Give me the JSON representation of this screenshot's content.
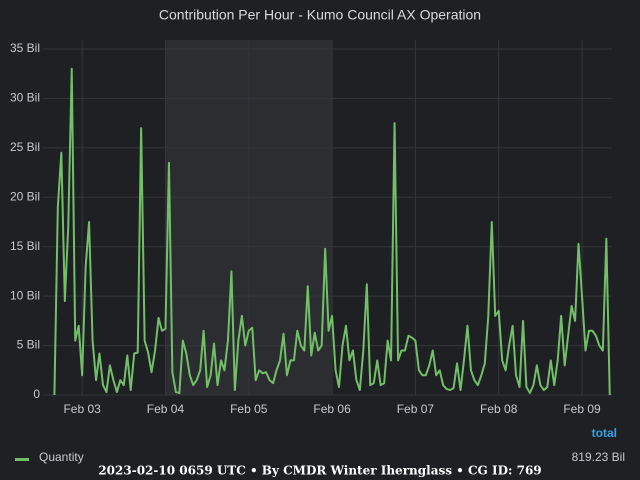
{
  "chart_data": {
    "type": "line",
    "title": "Contribution Per Hour - Kumo Council AX Operation",
    "x": [
      2.667,
      2.708,
      2.75,
      2.792,
      2.833,
      2.875,
      2.917,
      2.958,
      3,
      3.042,
      3.083,
      3.125,
      3.167,
      3.208,
      3.25,
      3.292,
      3.333,
      3.375,
      3.417,
      3.458,
      3.5,
      3.542,
      3.583,
      3.625,
      3.667,
      3.708,
      3.75,
      3.792,
      3.833,
      3.875,
      3.917,
      3.958,
      4,
      4.042,
      4.083,
      4.125,
      4.167,
      4.208,
      4.25,
      4.292,
      4.333,
      4.375,
      4.417,
      4.458,
      4.5,
      4.542,
      4.583,
      4.625,
      4.667,
      4.708,
      4.75,
      4.792,
      4.833,
      4.875,
      4.917,
      4.958,
      5,
      5.042,
      5.083,
      5.125,
      5.167,
      5.208,
      5.25,
      5.292,
      5.333,
      5.375,
      5.417,
      5.458,
      5.5,
      5.542,
      5.583,
      5.625,
      5.667,
      5.708,
      5.75,
      5.792,
      5.833,
      5.875,
      5.917,
      5.958,
      6,
      6.042,
      6.083,
      6.125,
      6.167,
      6.208,
      6.25,
      6.292,
      6.333,
      6.375,
      6.417,
      6.458,
      6.5,
      6.542,
      6.583,
      6.625,
      6.667,
      6.708,
      6.75,
      6.792,
      6.833,
      6.875,
      6.917,
      6.958,
      7,
      7.042,
      7.083,
      7.125,
      7.167,
      7.208,
      7.25,
      7.292,
      7.333,
      7.375,
      7.417,
      7.458,
      7.5,
      7.542,
      7.583,
      7.625,
      7.667,
      7.708,
      7.75,
      7.792,
      7.833,
      7.875,
      7.917,
      7.958,
      8,
      8.042,
      8.083,
      8.125,
      8.167,
      8.208,
      8.25,
      8.292,
      8.333,
      8.375,
      8.417,
      8.458,
      8.5,
      8.542,
      8.583,
      8.625,
      8.667,
      8.708,
      8.75,
      8.792,
      8.833,
      8.875,
      8.917,
      8.958,
      9,
      9.042,
      9.083,
      9.125,
      9.167,
      9.208,
      9.25,
      9.292,
      9.333
    ],
    "series": [
      {
        "name": "Quantity",
        "color": "#73bf69",
        "values": [
          0,
          19,
          24.5,
          9.5,
          17,
          33,
          5.5,
          7,
          2,
          13,
          17.5,
          5.5,
          1.5,
          4.2,
          1,
          0.3,
          3,
          1.5,
          0.3,
          1.5,
          1,
          4,
          0.5,
          4.2,
          4.3,
          27,
          5.5,
          4.3,
          2.3,
          4.5,
          7.8,
          6.5,
          6.7,
          23.5,
          2.3,
          0.3,
          0.2,
          5.5,
          4.2,
          2,
          1,
          1.5,
          2.5,
          6.5,
          0.8,
          2,
          5.2,
          1,
          3.5,
          2.5,
          5.5,
          12.5,
          0.5,
          5.5,
          8,
          5,
          6.5,
          6.8,
          1.5,
          2.5,
          2.2,
          2.3,
          1.5,
          1.2,
          2.5,
          3.5,
          6.2,
          2,
          3.5,
          3.5,
          6.5,
          5,
          4.5,
          11,
          4,
          6.3,
          4.5,
          5,
          14.8,
          6.5,
          8,
          2.5,
          0.8,
          5,
          7,
          3.5,
          4.5,
          1.5,
          0.5,
          4.5,
          11.2,
          1,
          1.2,
          3.5,
          1,
          1.2,
          5.5,
          3.5,
          27.5,
          3.5,
          4.5,
          4.5,
          6,
          5.8,
          5.5,
          2.5,
          2,
          2,
          3,
          4.5,
          2,
          2.5,
          1,
          0.6,
          0.5,
          0.7,
          3.2,
          0.5,
          3.5,
          7,
          2.5,
          1.5,
          1,
          2,
          3.2,
          8,
          17.5,
          8,
          8.5,
          3.5,
          2.5,
          5,
          7,
          2,
          0.8,
          7.5,
          0.8,
          0.2,
          1,
          3,
          1,
          0.5,
          0.8,
          3.5,
          1,
          3.5,
          8,
          3,
          6,
          9,
          7.5,
          15.3,
          10,
          4.5,
          6.5,
          6.5,
          6,
          5,
          4.5,
          15.8,
          0
        ]
      }
    ],
    "xlim": [
      2.53,
      9.36
    ],
    "xticks": [
      {
        "value": 3,
        "label": "Feb 03"
      },
      {
        "value": 4,
        "label": "Feb 04"
      },
      {
        "value": 5,
        "label": "Feb 05"
      },
      {
        "value": 6,
        "label": "Feb 06"
      },
      {
        "value": 7,
        "label": "Feb 07"
      },
      {
        "value": 8,
        "label": "Feb 08"
      },
      {
        "value": 9,
        "label": "Feb 09"
      }
    ],
    "ylim": [
      0,
      35
    ],
    "yticks": [
      0,
      {
        "value": 5,
        "label": "5 Bil"
      },
      {
        "value": 10,
        "label": "10 Bil"
      },
      {
        "value": 15,
        "label": "15 Bil"
      },
      {
        "value": 20,
        "label": "20 Bil"
      },
      {
        "value": 25,
        "label": "25 Bil"
      },
      {
        "value": 30,
        "label": "30 Bil"
      },
      {
        "value": 35,
        "label": "35 Bil"
      }
    ],
    "highlight": [
      4,
      6
    ],
    "grid": true,
    "legend_header": "total",
    "legend_total": "819.23 Bil",
    "footer": "2023-02-10 0659 UTC • By CMDR Winter Ihernglass • CG ID: 769"
  }
}
